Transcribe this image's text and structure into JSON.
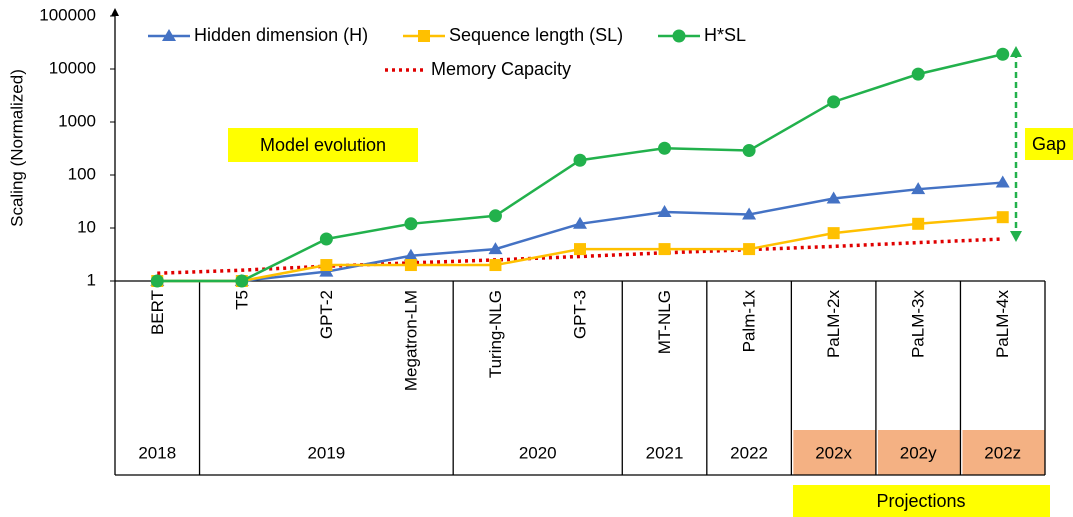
{
  "chart_data": {
    "type": "line",
    "ylabel": "Scaling (Normalized)",
    "categories": [
      "BERT",
      "T5",
      "GPT-2",
      "Megatron-LM",
      "Turing-NLG",
      "GPT-3",
      "MT-NLG",
      "Palm-1x",
      "PaLM-2x",
      "PaLM-3x",
      "PaLM-4x"
    ],
    "year_groups": [
      {
        "label": "2018",
        "count": 1
      },
      {
        "label": "2019",
        "count": 3
      },
      {
        "label": "2020",
        "count": 2
      },
      {
        "label": "2021",
        "count": 1
      },
      {
        "label": "2022",
        "count": 1
      },
      {
        "label": "202x",
        "count": 1,
        "highlight": "#f4b183"
      },
      {
        "label": "202y",
        "count": 1,
        "highlight": "#f4b183"
      },
      {
        "label": "202z",
        "count": 1,
        "highlight": "#f4b183"
      }
    ],
    "series": [
      {
        "name": "Hidden dimension (H)",
        "color": "#4472c4",
        "marker": "triangle",
        "values": [
          1,
          1,
          1.5,
          3,
          4,
          12,
          20,
          18,
          36,
          54,
          72
        ]
      },
      {
        "name": "Sequence length (SL)",
        "color": "#ffc000",
        "marker": "square",
        "values": [
          1,
          1,
          2,
          2,
          2,
          4,
          4,
          4,
          8,
          12,
          16
        ]
      },
      {
        "name": "H*SL",
        "color": "#22b14c",
        "marker": "circle",
        "values": [
          1,
          1,
          6.2,
          12,
          17,
          190,
          320,
          290,
          2400,
          8000,
          19000
        ]
      },
      {
        "name": "Memory Capacity",
        "color": "#e00000",
        "dash": "dotted",
        "values": [
          1.4,
          1.6,
          1.9,
          2.2,
          2.5,
          2.9,
          3.4,
          3.9,
          4.5,
          5.3,
          6.2
        ]
      }
    ],
    "ylim": [
      1,
      100000
    ],
    "yticks": [
      1,
      10,
      100,
      1000,
      10000,
      100000
    ],
    "ylog": true,
    "annotations": {
      "model_evolution": "Model evolution",
      "gap": "Gap",
      "projections": "Projections"
    }
  }
}
